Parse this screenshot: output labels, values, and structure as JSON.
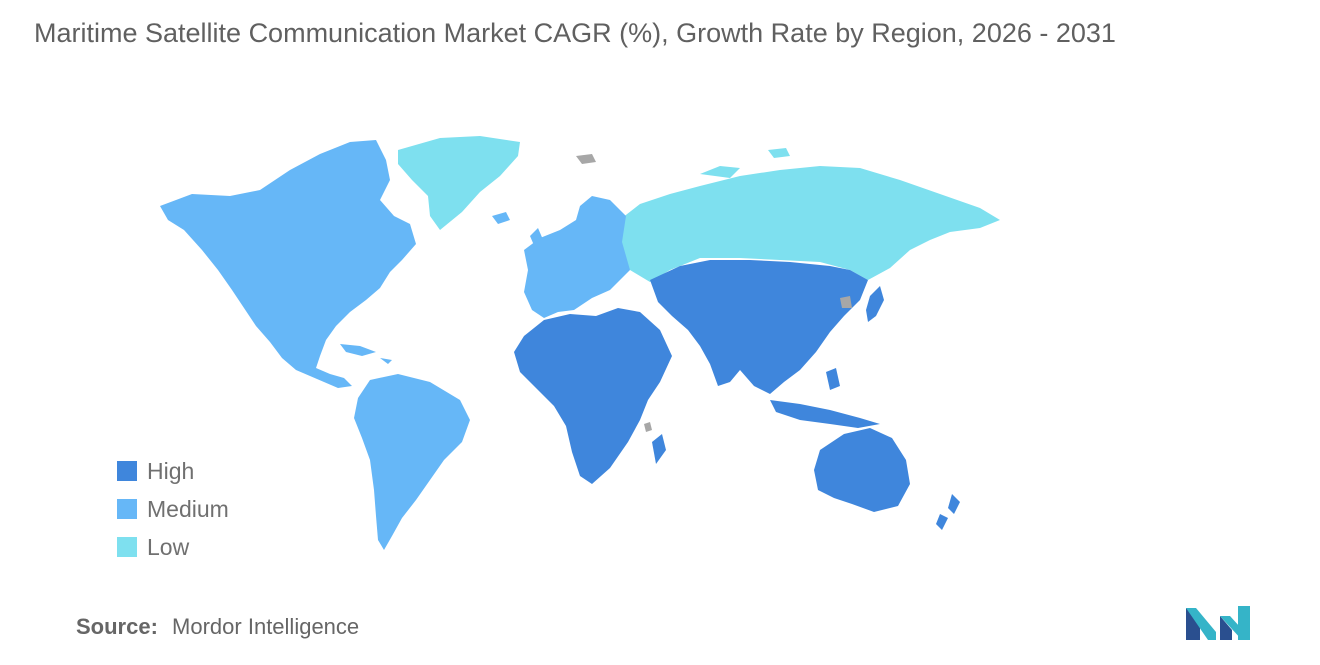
{
  "title": "Maritime Satellite Communication Market CAGR (%), Growth Rate by Region, 2026 - 2031",
  "legend": [
    {
      "label": "High",
      "color": "#3f86dc"
    },
    {
      "label": "Medium",
      "color": "#66b7f7"
    },
    {
      "label": "Low",
      "color": "#7ee0ef"
    }
  ],
  "no_data_color": "#a7a7a7",
  "source": {
    "label": "Source:",
    "value": "Mordor Intelligence"
  },
  "logo_icon": "mordor-intelligence-logo-icon"
}
